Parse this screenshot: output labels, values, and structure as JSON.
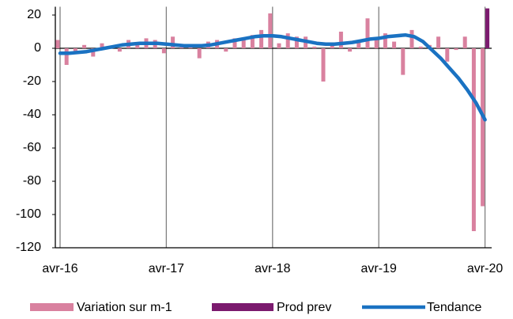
{
  "chart_data": {
    "type": "bar",
    "categories": [
      "avr-16",
      null,
      null,
      null,
      null,
      null,
      null,
      null,
      null,
      null,
      null,
      null,
      "avr-17",
      null,
      null,
      null,
      null,
      null,
      null,
      null,
      null,
      null,
      null,
      null,
      "avr-18",
      null,
      null,
      null,
      null,
      null,
      null,
      null,
      null,
      null,
      null,
      null,
      "avr-19",
      null,
      null,
      null,
      null,
      null,
      null,
      null,
      null,
      null,
      null,
      null,
      "avr-20"
    ],
    "series": [
      {
        "name": "Variation sur m-1",
        "kind": "bar",
        "color": "#d9819f",
        "values": [
          5,
          -10,
          -2,
          2,
          -5,
          3,
          0,
          -2,
          5,
          3,
          6,
          5,
          -3,
          7,
          1,
          2,
          -6,
          4,
          5,
          -2,
          6,
          6,
          8,
          11,
          21,
          3,
          9,
          7,
          7,
          1,
          -20,
          3,
          10,
          -2,
          4,
          18,
          5,
          9,
          4,
          -16,
          11,
          1,
          2,
          7,
          -8,
          -1,
          7,
          -110,
          -95
        ]
      },
      {
        "name": "Prod prev",
        "kind": "bar",
        "color": "#7b1a6e",
        "values": [
          null,
          null,
          null,
          null,
          null,
          null,
          null,
          null,
          null,
          null,
          null,
          null,
          null,
          null,
          null,
          null,
          null,
          null,
          null,
          null,
          null,
          null,
          null,
          null,
          null,
          null,
          null,
          null,
          null,
          null,
          null,
          null,
          null,
          null,
          null,
          null,
          null,
          null,
          null,
          null,
          null,
          null,
          null,
          null,
          null,
          null,
          null,
          null,
          24
        ]
      },
      {
        "name": "Tendance",
        "kind": "line",
        "color": "#1a72c2",
        "values": [
          -3,
          -3,
          -2.5,
          -2,
          -1,
          0,
          1,
          2,
          2.5,
          3,
          3,
          3,
          2.5,
          2,
          1.5,
          1.5,
          1.5,
          2,
          3,
          4,
          5,
          6,
          7,
          7.5,
          7.5,
          7,
          6,
          5,
          4,
          3,
          2.5,
          2.5,
          3,
          3.5,
          4.5,
          5.5,
          6,
          7,
          7.5,
          8,
          7,
          4,
          -1,
          -6,
          -12,
          -18,
          -25,
          -33,
          -43
        ]
      }
    ],
    "ylim": [
      -120,
      25
    ],
    "yticks": [
      -120,
      -100,
      -80,
      -60,
      -40,
      -20,
      0,
      20
    ],
    "x_grid": true,
    "legend": "bottom"
  }
}
